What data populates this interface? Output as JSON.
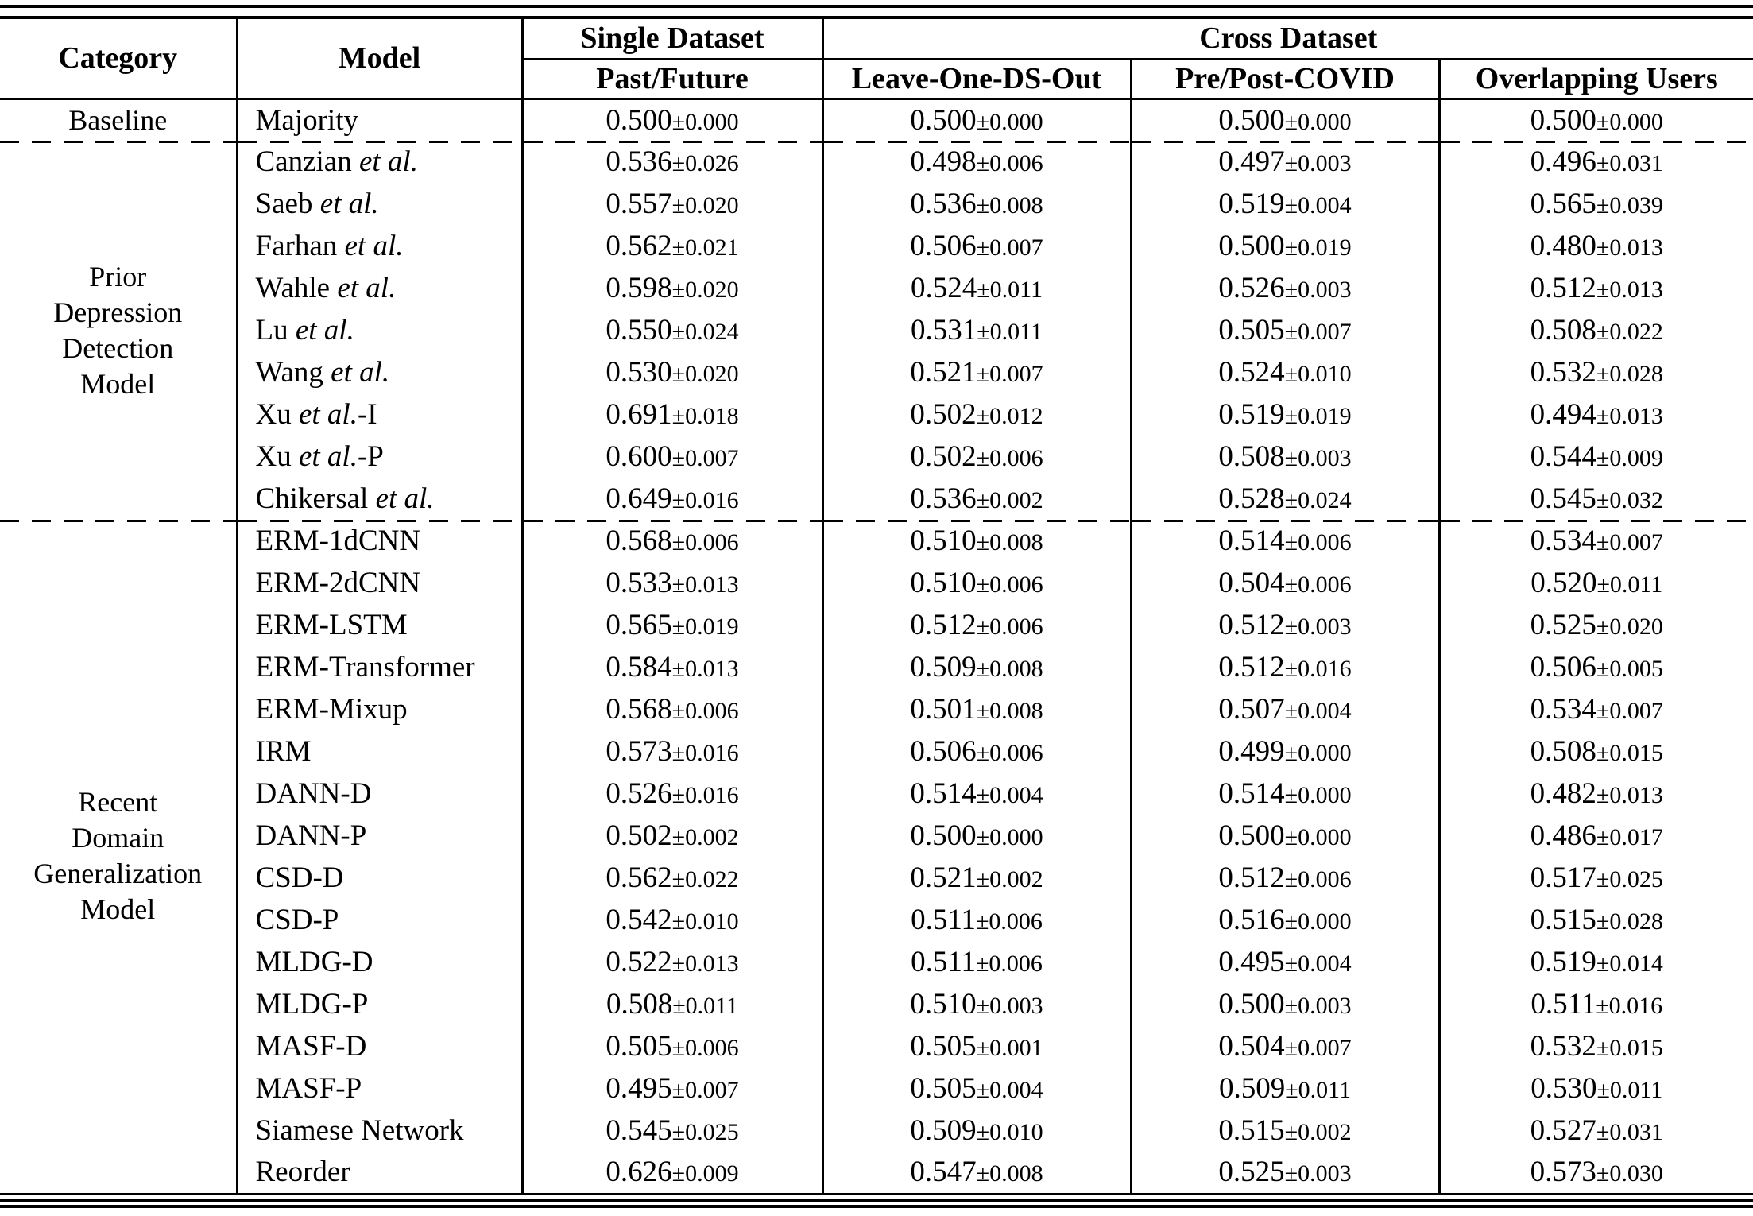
{
  "page": {
    "background": "#ffffff",
    "text_color": "#000000"
  },
  "table": {
    "plus_minus": "±",
    "header": {
      "category": "Category",
      "model": "Model",
      "single_dataset": "Single Dataset",
      "cross_dataset": "Cross Dataset",
      "subcolumns": [
        "Past/Future",
        "Leave-One-DS-Out",
        "Pre/Post-COVID",
        "Overlapping Users"
      ]
    },
    "sections": [
      {
        "category_lines": [
          "Baseline"
        ],
        "rows": [
          {
            "model_pre": "Majority",
            "model_etal": "",
            "model_post": "",
            "values": [
              {
                "mean": "0.500",
                "std": "0.000"
              },
              {
                "mean": "0.500",
                "std": "0.000"
              },
              {
                "mean": "0.500",
                "std": "0.000"
              },
              {
                "mean": "0.500",
                "std": "0.000"
              }
            ]
          }
        ]
      },
      {
        "category_lines": [
          "Prior",
          "Depression",
          "Detection",
          "Model"
        ],
        "rows": [
          {
            "model_pre": "Canzian ",
            "model_etal": "et al.",
            "model_post": "",
            "values": [
              {
                "mean": "0.536",
                "std": "0.026"
              },
              {
                "mean": "0.498",
                "std": "0.006"
              },
              {
                "mean": "0.497",
                "std": "0.003"
              },
              {
                "mean": "0.496",
                "std": "0.031"
              }
            ]
          },
          {
            "model_pre": "Saeb ",
            "model_etal": "et al.",
            "model_post": "",
            "values": [
              {
                "mean": "0.557",
                "std": "0.020"
              },
              {
                "mean": "0.536",
                "std": "0.008"
              },
              {
                "mean": "0.519",
                "std": "0.004"
              },
              {
                "mean": "0.565",
                "std": "0.039"
              }
            ]
          },
          {
            "model_pre": "Farhan ",
            "model_etal": "et al.",
            "model_post": "",
            "values": [
              {
                "mean": "0.562",
                "std": "0.021"
              },
              {
                "mean": "0.506",
                "std": "0.007"
              },
              {
                "mean": "0.500",
                "std": "0.019"
              },
              {
                "mean": "0.480",
                "std": "0.013"
              }
            ]
          },
          {
            "model_pre": "Wahle ",
            "model_etal": "et al.",
            "model_post": "",
            "values": [
              {
                "mean": "0.598",
                "std": "0.020"
              },
              {
                "mean": "0.524",
                "std": "0.011"
              },
              {
                "mean": "0.526",
                "std": "0.003"
              },
              {
                "mean": "0.512",
                "std": "0.013"
              }
            ]
          },
          {
            "model_pre": "Lu ",
            "model_etal": "et al.",
            "model_post": "",
            "values": [
              {
                "mean": "0.550",
                "std": "0.024"
              },
              {
                "mean": "0.531",
                "std": "0.011"
              },
              {
                "mean": "0.505",
                "std": "0.007"
              },
              {
                "mean": "0.508",
                "std": "0.022"
              }
            ]
          },
          {
            "model_pre": "Wang ",
            "model_etal": "et al.",
            "model_post": "",
            "values": [
              {
                "mean": "0.530",
                "std": "0.020"
              },
              {
                "mean": "0.521",
                "std": "0.007"
              },
              {
                "mean": "0.524",
                "std": "0.010"
              },
              {
                "mean": "0.532",
                "std": "0.028"
              }
            ]
          },
          {
            "model_pre": "Xu ",
            "model_etal": "et al.",
            "model_post": "-I",
            "values": [
              {
                "mean": "0.691",
                "std": "0.018"
              },
              {
                "mean": "0.502",
                "std": "0.012"
              },
              {
                "mean": "0.519",
                "std": "0.019"
              },
              {
                "mean": "0.494",
                "std": "0.013"
              }
            ]
          },
          {
            "model_pre": "Xu ",
            "model_etal": "et al.",
            "model_post": "-P",
            "values": [
              {
                "mean": "0.600",
                "std": "0.007"
              },
              {
                "mean": "0.502",
                "std": "0.006"
              },
              {
                "mean": "0.508",
                "std": "0.003"
              },
              {
                "mean": "0.544",
                "std": "0.009"
              }
            ]
          },
          {
            "model_pre": "Chikersal ",
            "model_etal": "et al.",
            "model_post": "",
            "values": [
              {
                "mean": "0.649",
                "std": "0.016"
              },
              {
                "mean": "0.536",
                "std": "0.002"
              },
              {
                "mean": "0.528",
                "std": "0.024"
              },
              {
                "mean": "0.545",
                "std": "0.032"
              }
            ]
          }
        ]
      },
      {
        "category_lines": [
          "Recent",
          "Domain",
          "Generalization",
          "Model"
        ],
        "rows": [
          {
            "model_pre": "ERM-1dCNN",
            "model_etal": "",
            "model_post": "",
            "values": [
              {
                "mean": "0.568",
                "std": "0.006"
              },
              {
                "mean": "0.510",
                "std": "0.008"
              },
              {
                "mean": "0.514",
                "std": "0.006"
              },
              {
                "mean": "0.534",
                "std": "0.007"
              }
            ]
          },
          {
            "model_pre": "ERM-2dCNN",
            "model_etal": "",
            "model_post": "",
            "values": [
              {
                "mean": "0.533",
                "std": "0.013"
              },
              {
                "mean": "0.510",
                "std": "0.006"
              },
              {
                "mean": "0.504",
                "std": "0.006"
              },
              {
                "mean": "0.520",
                "std": "0.011"
              }
            ]
          },
          {
            "model_pre": "ERM-LSTM",
            "model_etal": "",
            "model_post": "",
            "values": [
              {
                "mean": "0.565",
                "std": "0.019"
              },
              {
                "mean": "0.512",
                "std": "0.006"
              },
              {
                "mean": "0.512",
                "std": "0.003"
              },
              {
                "mean": "0.525",
                "std": "0.020"
              }
            ]
          },
          {
            "model_pre": "ERM-Transformer",
            "model_etal": "",
            "model_post": "",
            "values": [
              {
                "mean": "0.584",
                "std": "0.013"
              },
              {
                "mean": "0.509",
                "std": "0.008"
              },
              {
                "mean": "0.512",
                "std": "0.016"
              },
              {
                "mean": "0.506",
                "std": "0.005"
              }
            ]
          },
          {
            "model_pre": "ERM-Mixup",
            "model_etal": "",
            "model_post": "",
            "values": [
              {
                "mean": "0.568",
                "std": "0.006"
              },
              {
                "mean": "0.501",
                "std": "0.008"
              },
              {
                "mean": "0.507",
                "std": "0.004"
              },
              {
                "mean": "0.534",
                "std": "0.007"
              }
            ]
          },
          {
            "model_pre": "IRM",
            "model_etal": "",
            "model_post": "",
            "values": [
              {
                "mean": "0.573",
                "std": "0.016"
              },
              {
                "mean": "0.506",
                "std": "0.006"
              },
              {
                "mean": "0.499",
                "std": "0.000"
              },
              {
                "mean": "0.508",
                "std": "0.015"
              }
            ]
          },
          {
            "model_pre": "DANN-D",
            "model_etal": "",
            "model_post": "",
            "values": [
              {
                "mean": "0.526",
                "std": "0.016"
              },
              {
                "mean": "0.514",
                "std": "0.004"
              },
              {
                "mean": "0.514",
                "std": "0.000"
              },
              {
                "mean": "0.482",
                "std": "0.013"
              }
            ]
          },
          {
            "model_pre": "DANN-P",
            "model_etal": "",
            "model_post": "",
            "values": [
              {
                "mean": "0.502",
                "std": "0.002"
              },
              {
                "mean": "0.500",
                "std": "0.000"
              },
              {
                "mean": "0.500",
                "std": "0.000"
              },
              {
                "mean": "0.486",
                "std": "0.017"
              }
            ]
          },
          {
            "model_pre": "CSD-D",
            "model_etal": "",
            "model_post": "",
            "values": [
              {
                "mean": "0.562",
                "std": "0.022"
              },
              {
                "mean": "0.521",
                "std": "0.002"
              },
              {
                "mean": "0.512",
                "std": "0.006"
              },
              {
                "mean": "0.517",
                "std": "0.025"
              }
            ]
          },
          {
            "model_pre": "CSD-P",
            "model_etal": "",
            "model_post": "",
            "values": [
              {
                "mean": "0.542",
                "std": "0.010"
              },
              {
                "mean": "0.511",
                "std": "0.006"
              },
              {
                "mean": "0.516",
                "std": "0.000"
              },
              {
                "mean": "0.515",
                "std": "0.028"
              }
            ]
          },
          {
            "model_pre": "MLDG-D",
            "model_etal": "",
            "model_post": "",
            "values": [
              {
                "mean": "0.522",
                "std": "0.013"
              },
              {
                "mean": "0.511",
                "std": "0.006"
              },
              {
                "mean": "0.495",
                "std": "0.004"
              },
              {
                "mean": "0.519",
                "std": "0.014"
              }
            ]
          },
          {
            "model_pre": "MLDG-P",
            "model_etal": "",
            "model_post": "",
            "values": [
              {
                "mean": "0.508",
                "std": "0.011"
              },
              {
                "mean": "0.510",
                "std": "0.003"
              },
              {
                "mean": "0.500",
                "std": "0.003"
              },
              {
                "mean": "0.511",
                "std": "0.016"
              }
            ]
          },
          {
            "model_pre": "MASF-D",
            "model_etal": "",
            "model_post": "",
            "values": [
              {
                "mean": "0.505",
                "std": "0.006"
              },
              {
                "mean": "0.505",
                "std": "0.001"
              },
              {
                "mean": "0.504",
                "std": "0.007"
              },
              {
                "mean": "0.532",
                "std": "0.015"
              }
            ]
          },
          {
            "model_pre": "MASF-P",
            "model_etal": "",
            "model_post": "",
            "values": [
              {
                "mean": "0.495",
                "std": "0.007"
              },
              {
                "mean": "0.505",
                "std": "0.004"
              },
              {
                "mean": "0.509",
                "std": "0.011"
              },
              {
                "mean": "0.530",
                "std": "0.011"
              }
            ]
          },
          {
            "model_pre": "Siamese Network",
            "model_etal": "",
            "model_post": "",
            "values": [
              {
                "mean": "0.545",
                "std": "0.025"
              },
              {
                "mean": "0.509",
                "std": "0.010"
              },
              {
                "mean": "0.515",
                "std": "0.002"
              },
              {
                "mean": "0.527",
                "std": "0.031"
              }
            ]
          },
          {
            "model_pre": "Reorder",
            "model_etal": "",
            "model_post": "",
            "values": [
              {
                "mean": "0.626",
                "std": "0.009"
              },
              {
                "mean": "0.547",
                "std": "0.008"
              },
              {
                "mean": "0.525",
                "std": "0.003"
              },
              {
                "mean": "0.573",
                "std": "0.030"
              }
            ]
          }
        ]
      }
    ]
  }
}
